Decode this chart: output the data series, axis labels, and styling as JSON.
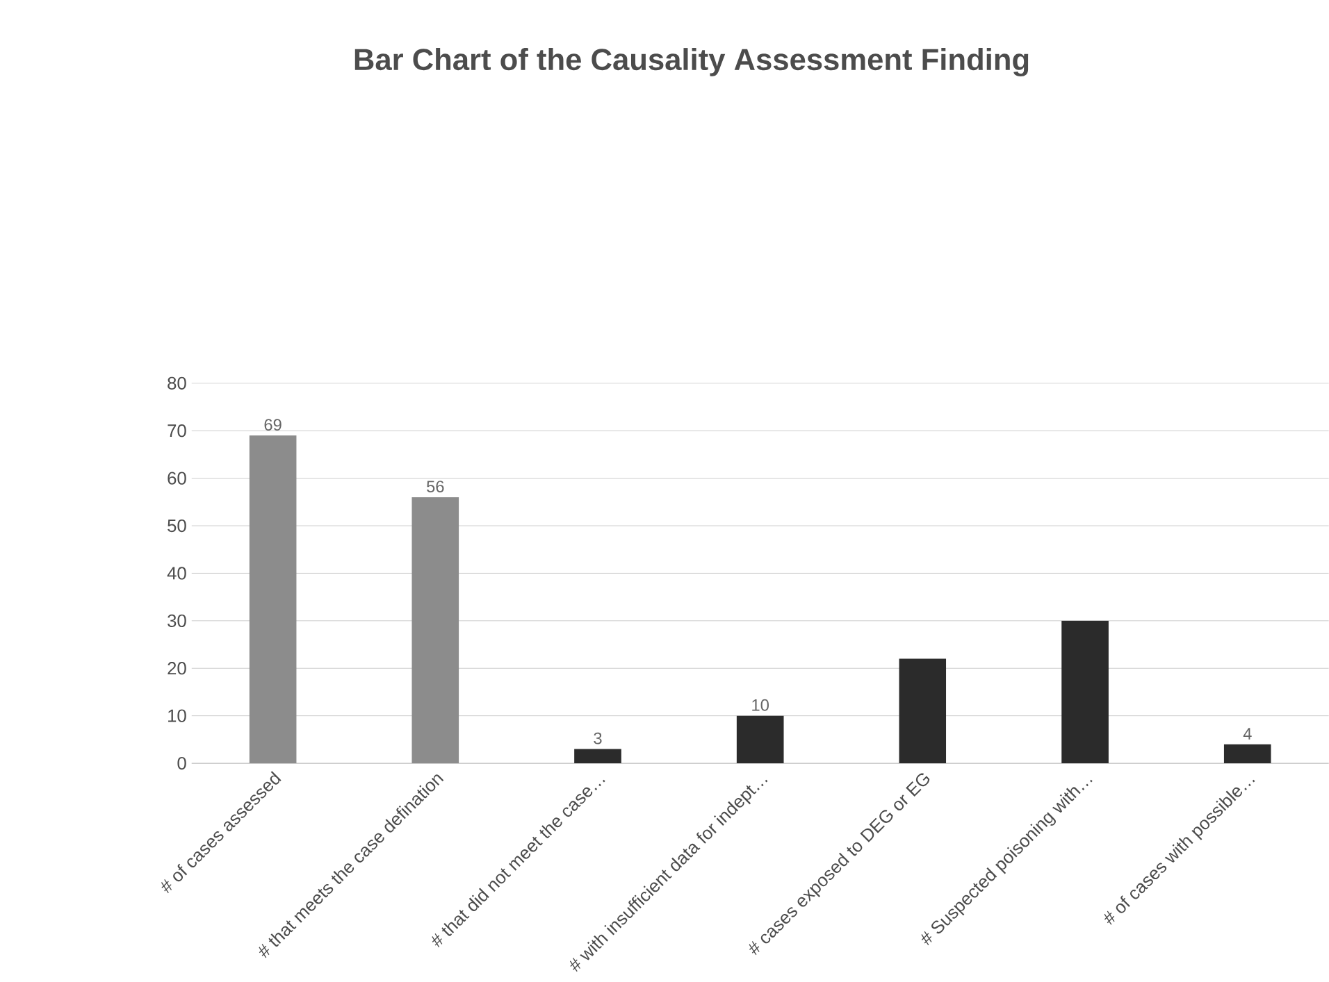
{
  "chart_data": {
    "type": "bar",
    "title": "Bar Chart of the Causality Assessment Finding",
    "categories": [
      "# of cases assessed",
      "# that meets the case defination",
      "# that did not meet the case…",
      "# with insufficient data for indept…",
      "# cases exposed to DEG or EG",
      "# Suspected poisoning with…",
      "# of cases with possible…"
    ],
    "values": [
      69,
      56,
      3,
      10,
      22,
      30,
      4
    ],
    "value_labels": [
      "69",
      "56",
      "3",
      "10",
      null,
      null,
      "4"
    ],
    "colors": [
      "#8c8c8c",
      "#8c8c8c",
      "#2b2b2b",
      "#2b2b2b",
      "#2b2b2b",
      "#2b2b2b",
      "#2b2b2b"
    ],
    "ylim": [
      0,
      80
    ],
    "yticks": [
      0,
      10,
      20,
      30,
      40,
      50,
      60,
      70,
      80
    ],
    "grid": "y"
  }
}
